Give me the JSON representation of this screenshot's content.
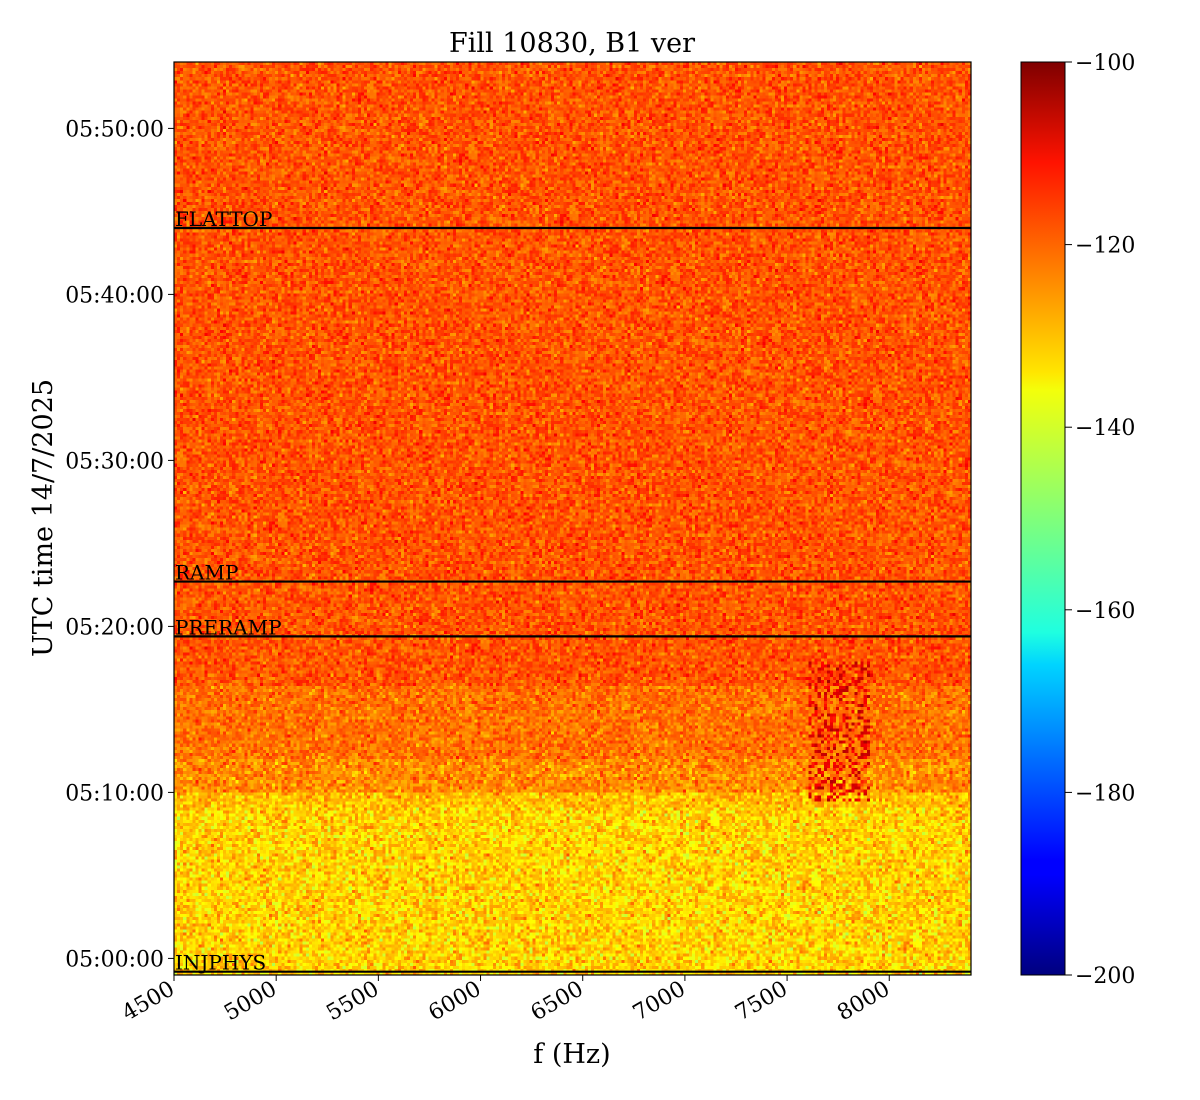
{
  "chart_data": {
    "type": "heatmap",
    "title": "Fill 10830, B1 ver",
    "xlabel": "f (Hz)",
    "ylabel": "UTC time 14/7/2025",
    "xlim": [
      4500,
      8400
    ],
    "ylim_minutes": [
      59,
      114
    ],
    "x_ticks": [
      {
        "value": 4500,
        "label": "4500"
      },
      {
        "value": 5000,
        "label": "5000"
      },
      {
        "value": 5500,
        "label": "5500"
      },
      {
        "value": 6000,
        "label": "6000"
      },
      {
        "value": 6500,
        "label": "6500"
      },
      {
        "value": 7000,
        "label": "7000"
      },
      {
        "value": 7500,
        "label": "7500"
      },
      {
        "value": 8000,
        "label": "8000"
      }
    ],
    "y_ticks": [
      {
        "value": 60,
        "label": "05:00:00"
      },
      {
        "value": 70,
        "label": "05:10:00"
      },
      {
        "value": 80,
        "label": "05:20:00"
      },
      {
        "value": 90,
        "label": "05:30:00"
      },
      {
        "value": 100,
        "label": "05:40:00"
      },
      {
        "value": 110,
        "label": "05:50:00"
      }
    ],
    "colorbar": {
      "colormap": "jet",
      "range": [
        -200,
        -100
      ],
      "ticks": [
        {
          "value": -100,
          "label": "−100"
        },
        {
          "value": -120,
          "label": "−120"
        },
        {
          "value": -140,
          "label": "−140"
        },
        {
          "value": -160,
          "label": "−160"
        },
        {
          "value": -180,
          "label": "−180"
        },
        {
          "value": -200,
          "label": "−200"
        }
      ]
    },
    "phase_markers": [
      {
        "label": "INJPHYS",
        "time": 59.2
      },
      {
        "label": "PRERAMP",
        "time": 79.4
      },
      {
        "label": "RAMP",
        "time": 82.7
      },
      {
        "label": "FLATTOP",
        "time": 104.0
      }
    ],
    "level_regions": [
      {
        "t_start": 59,
        "t_end": 69.0,
        "mean_level": -133,
        "spread": 4.5
      },
      {
        "t_start": 69.0,
        "t_end": 70.0,
        "mean_level": -131,
        "spread": 4
      },
      {
        "t_start": 70.0,
        "t_end": 72.0,
        "mean_level": -126,
        "spread": 4
      },
      {
        "t_start": 72.0,
        "t_end": 76.5,
        "mean_level": -123.5,
        "spread": 3.5
      },
      {
        "t_start": 76.5,
        "t_end": 114,
        "mean_level": -120.5,
        "spread": 3.5
      }
    ],
    "features": [
      {
        "f_start": 7600,
        "f_end": 7900,
        "t_start": 69.5,
        "t_end": 77.8,
        "level": -110
      }
    ]
  }
}
